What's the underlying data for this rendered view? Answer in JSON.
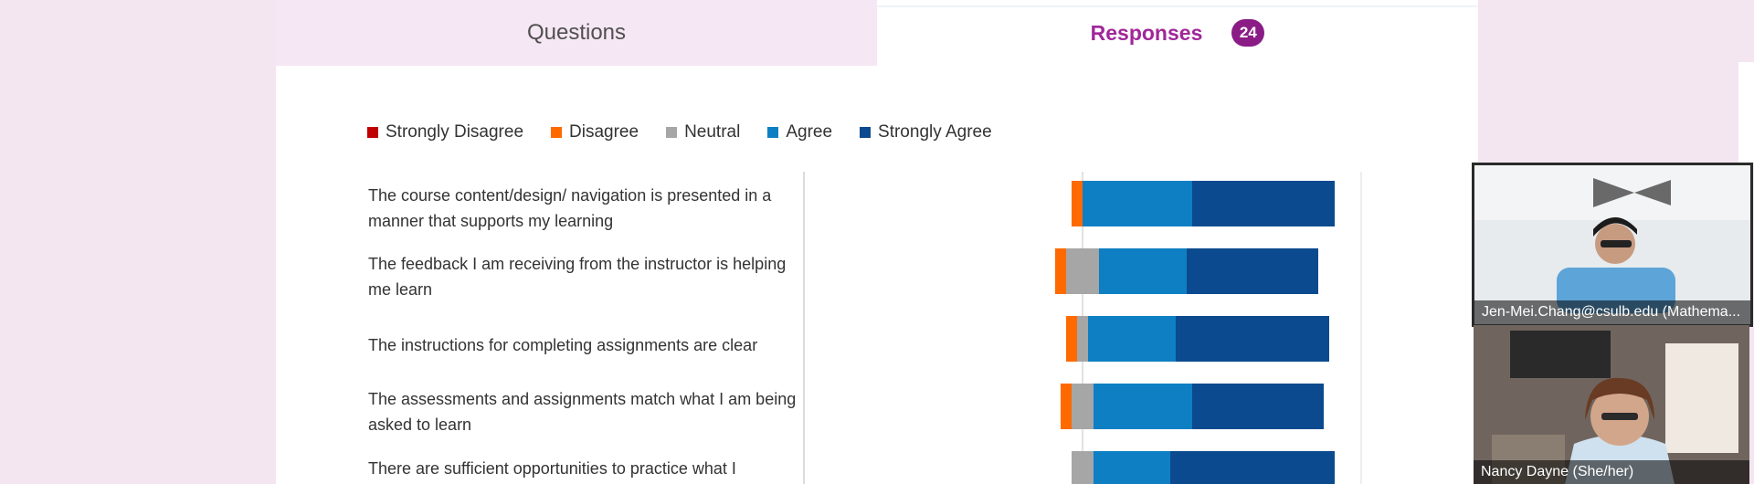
{
  "tabs": {
    "questions_label": "Questions",
    "responses_label": "Responses",
    "responses_count": "24"
  },
  "legend": [
    {
      "label": "Strongly Disagree",
      "color": "#c00000"
    },
    {
      "label": "Disagree",
      "color": "#ff6a00"
    },
    {
      "label": "Neutral",
      "color": "#a6a6a6"
    },
    {
      "label": "Agree",
      "color": "#0e7fc3"
    },
    {
      "label": "Strongly Agree",
      "color": "#0b4a8e"
    }
  ],
  "questions": [
    "The course content/design/ navigation is presented in a manner that supports my learning",
    "The feedback I am receiving from the instructor is helping me learn",
    "The instructions for completing assignments are clear",
    "The assessments and assignments match what I am being asked to learn",
    "There are sufficient opportunities to practice what I"
  ],
  "chart_data": {
    "type": "bar",
    "stacked": "diverging",
    "categories": [
      "The course content/design/ navigation is presented in a manner that supports my learning",
      "The feedback I am receiving from the instructor is helping me learn",
      "The instructions for completing assignments are clear",
      "The assessments and assignments match what I am being asked to learn",
      "There are sufficient opportunities to practice what I"
    ],
    "series": [
      {
        "name": "Strongly Disagree",
        "values": [
          0,
          0,
          0,
          0,
          0
        ]
      },
      {
        "name": "Disagree",
        "values": [
          1,
          1,
          1,
          1,
          0
        ]
      },
      {
        "name": "Neutral",
        "values": [
          0,
          3,
          1,
          2,
          2
        ]
      },
      {
        "name": "Agree",
        "values": [
          10,
          8,
          8,
          9,
          7
        ]
      },
      {
        "name": "Strongly Agree",
        "values": [
          13,
          12,
          14,
          12,
          15
        ]
      }
    ],
    "legend_position": "top-left"
  },
  "video": {
    "participants": [
      {
        "name": "Jen-Mei.Chang@csulb.edu (Mathema..."
      },
      {
        "name": "Nancy Dayne (She/her)"
      }
    ]
  }
}
